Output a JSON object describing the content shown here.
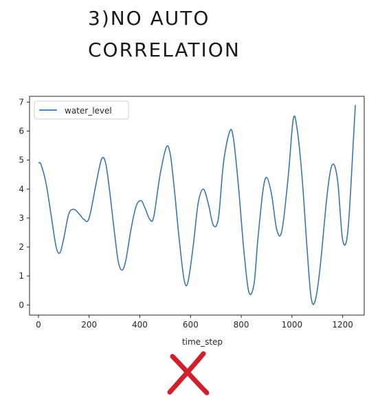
{
  "heading": {
    "line1": "3)NO AUTO",
    "line2": "CORRELATION"
  },
  "colors": {
    "series": "#3b75af",
    "cross": "#d0202e",
    "axis": "#262626"
  },
  "chart_data": {
    "type": "line",
    "title": "",
    "xlabel": "time_step",
    "ylabel": "",
    "xlim": [
      -35,
      1285
    ],
    "ylim": [
      -0.35,
      7.2
    ],
    "xticks": [
      0,
      200,
      400,
      600,
      800,
      1000,
      1200
    ],
    "yticks": [
      0,
      1,
      2,
      3,
      4,
      5,
      6,
      7
    ],
    "legend": "top-left",
    "grid": false,
    "series": [
      {
        "name": "water_level",
        "x": [
          0,
          10,
          30,
          50,
          70,
          85,
          100,
          120,
          140,
          160,
          180,
          200,
          230,
          250,
          265,
          280,
          300,
          315,
          330,
          345,
          365,
          385,
          405,
          420,
          440,
          455,
          480,
          505,
          520,
          535,
          555,
          575,
          590,
          610,
          630,
          650,
          670,
          690,
          710,
          730,
          755,
          770,
          790,
          810,
          830,
          850,
          865,
          885,
          900,
          920,
          940,
          960,
          985,
          1005,
          1020,
          1040,
          1060,
          1075,
          1090,
          1110,
          1140,
          1160,
          1180,
          1200,
          1220,
          1240,
          1250
        ],
        "y": [
          4.9,
          4.85,
          4.2,
          3.1,
          2.0,
          1.8,
          2.3,
          3.15,
          3.3,
          3.15,
          2.95,
          3.0,
          4.3,
          5.05,
          4.9,
          4.0,
          2.5,
          1.5,
          1.2,
          1.55,
          2.6,
          3.4,
          3.6,
          3.35,
          2.95,
          3.05,
          4.5,
          5.45,
          5.2,
          4.1,
          2.3,
          0.85,
          0.8,
          2.0,
          3.5,
          4.0,
          3.5,
          2.75,
          3.0,
          4.9,
          6.0,
          5.7,
          4.0,
          1.9,
          0.45,
          0.7,
          2.2,
          3.9,
          4.4,
          3.8,
          2.6,
          2.55,
          4.4,
          6.4,
          6.1,
          4.4,
          1.9,
          0.3,
          0.1,
          1.2,
          3.9,
          4.85,
          4.3,
          2.25,
          2.5,
          5.3,
          6.9
        ]
      }
    ]
  }
}
